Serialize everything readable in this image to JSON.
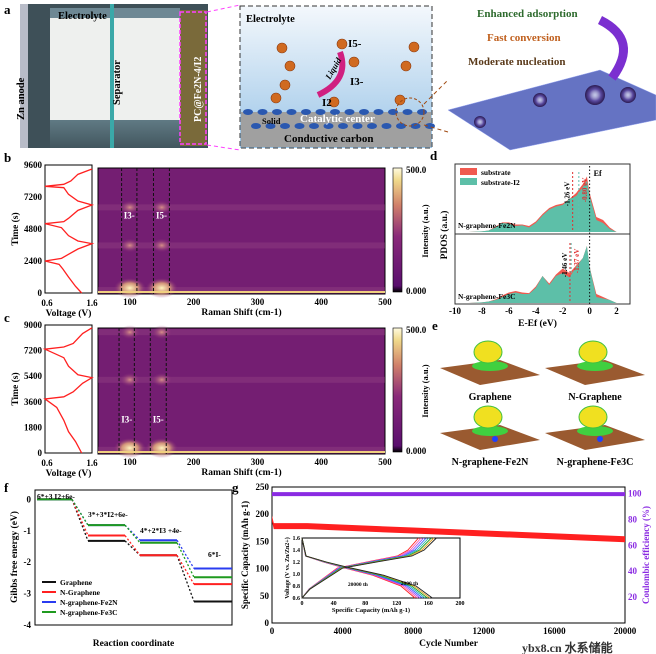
{
  "panels": {
    "a": "a",
    "b": "b",
    "c": "c",
    "d": "d",
    "e": "e",
    "f": "f",
    "g": "g"
  },
  "panel_a": {
    "cell": {
      "electrolyte": "Electrolyte",
      "anode": "Zn anode",
      "separator": "Separator",
      "cathode": "PC@Fe2N-4/I2"
    },
    "zoom": {
      "electrolyte": "Electrolyte",
      "i5": "I5-",
      "i3": "I3-",
      "i2": "I2",
      "liquid": "Liquid",
      "solid": "Solid",
      "catalytic": "Catalytic center",
      "carbon": "Conductive carbon"
    },
    "features": [
      "Enhanced adsorption",
      "Fast conversion",
      "Moderate nucleation"
    ],
    "feature_colors": [
      "#2e6b2e",
      "#c0601e",
      "#5a3a1a"
    ],
    "arrow_color": "#7b2fd0"
  },
  "chart_data": [
    {
      "id": "b-voltage",
      "type": "line",
      "xlabel": "Voltage (V)",
      "ylabel": "Time (s)",
      "xlim": [
        0.6,
        1.6
      ],
      "ylim": [
        0,
        9600
      ],
      "xticks": [
        "0.6",
        "1.6"
      ],
      "yticks": [
        "0",
        "2400",
        "4800",
        "7200",
        "9600"
      ],
      "color": "#ff2020",
      "points": [
        [
          1.38,
          0
        ],
        [
          1.25,
          500
        ],
        [
          1.1,
          1200
        ],
        [
          0.98,
          1800
        ],
        [
          0.9,
          2150
        ],
        [
          0.6,
          2400
        ],
        [
          0.95,
          2600
        ],
        [
          1.1,
          2900
        ],
        [
          1.3,
          3300
        ],
        [
          1.6,
          3700
        ],
        [
          1.3,
          3900
        ],
        [
          1.1,
          4300
        ],
        [
          0.95,
          4900
        ],
        [
          0.6,
          5200
        ],
        [
          1.0,
          5350
        ],
        [
          1.1,
          5600
        ],
        [
          1.3,
          6200
        ],
        [
          1.6,
          6600
        ],
        [
          1.3,
          6900
        ],
        [
          1.1,
          7400
        ],
        [
          1.0,
          7900
        ],
        [
          0.6,
          8000
        ],
        [
          1.0,
          8150
        ],
        [
          1.15,
          8400
        ],
        [
          1.3,
          8900
        ],
        [
          1.6,
          9300
        ]
      ]
    },
    {
      "id": "b-raman",
      "type": "heatmap",
      "xlabel": "Raman Shift (cm-1)",
      "xlim": [
        50,
        500
      ],
      "ylim": [
        0,
        9600
      ],
      "xticks": [
        "100",
        "200",
        "300",
        "400",
        "500"
      ],
      "colorbar": {
        "label": "Intensity (a.u.)",
        "max": "500.0",
        "min": "0.000"
      },
      "annotations": [
        "I3-",
        "I5-"
      ],
      "peaks_cm": [
        100,
        150
      ],
      "bands_cm": [
        [
          87,
          111
        ],
        [
          137,
          162
        ]
      ],
      "bright_times_s": [
        300,
        3700,
        6600
      ]
    },
    {
      "id": "c-voltage",
      "type": "line",
      "xlabel": "Voltage (V)",
      "ylabel": "Time (s)",
      "xlim": [
        0.6,
        1.6
      ],
      "ylim": [
        0,
        9000
      ],
      "xticks": [
        "0.6",
        "1.6"
      ],
      "yticks": [
        "0",
        "1800",
        "3600",
        "5400",
        "7200",
        "9000"
      ],
      "color": "#ff2020",
      "points": [
        [
          1.38,
          0
        ],
        [
          1.25,
          800
        ],
        [
          1.1,
          1500
        ],
        [
          1.0,
          2300
        ],
        [
          0.85,
          3200
        ],
        [
          0.6,
          3800
        ],
        [
          1.0,
          3950
        ],
        [
          1.2,
          4300
        ],
        [
          1.4,
          4900
        ],
        [
          1.6,
          5300
        ],
        [
          1.3,
          5500
        ],
        [
          1.1,
          6100
        ],
        [
          1.0,
          6700
        ],
        [
          0.6,
          7300
        ],
        [
          1.0,
          7450
        ],
        [
          1.2,
          7700
        ],
        [
          1.4,
          8400
        ],
        [
          1.6,
          8800
        ]
      ]
    },
    {
      "id": "c-raman",
      "type": "heatmap",
      "xlabel": "Raman Shift (cm-1)",
      "xlim": [
        50,
        500
      ],
      "ylim": [
        0,
        9000
      ],
      "xticks": [
        "100",
        "200",
        "300",
        "400",
        "500"
      ],
      "colorbar": {
        "label": "Intensity (a.u.)",
        "max": "500.0",
        "min": "0.000"
      },
      "annotations": [
        "I3-",
        "I5-"
      ],
      "peaks_cm": [
        100,
        150
      ],
      "bands_cm": [
        [
          83,
          107
        ],
        [
          132,
          157
        ]
      ],
      "bright_times_s": [
        300,
        5300,
        8700
      ]
    },
    {
      "id": "d-pdos",
      "type": "area",
      "xlabel": "E-Ef (eV)",
      "ylabel": "PDOS (a.u.)",
      "xlim": [
        -10,
        3
      ],
      "xticks": [
        "-10",
        "-8",
        "-6",
        "-4",
        "-2",
        "0",
        "2"
      ],
      "legend": [
        "substrate",
        "substrate-I2"
      ],
      "legend_colors": [
        "#f05a50",
        "#5dbfa8"
      ],
      "fermi": "Ef",
      "x": [
        -10,
        -9,
        -8,
        -7.5,
        -7,
        -6.5,
        -6,
        -5.5,
        -5,
        -4.5,
        -4,
        -3.5,
        -3,
        -2.5,
        -2,
        -1.5,
        -1,
        -0.5,
        -0.2,
        0,
        0.5,
        1,
        1.5,
        2,
        3
      ],
      "subplots": [
        {
          "name": "N-graphene-Fe2N",
          "centers": [
            "-1.26 eV",
            "-0.80 eV"
          ],
          "center_values": [
            -1.26,
            -0.8
          ],
          "substrate": [
            0,
            0,
            0.02,
            0.05,
            0.18,
            0.32,
            0.32,
            0.25,
            0.25,
            0.2,
            0.35,
            0.6,
            0.8,
            0.9,
            0.95,
            1.1,
            1.3,
            1.6,
            1.85,
            1.3,
            0.5,
            0.4,
            0.15,
            0,
            0
          ],
          "substrate_I2": [
            0,
            0,
            0.02,
            0.05,
            0.15,
            0.3,
            0.28,
            0.2,
            0.22,
            0.15,
            0.3,
            0.55,
            0.75,
            0.85,
            0.9,
            1.1,
            1.2,
            1.5,
            1.7,
            1.2,
            0.4,
            0.3,
            0.1,
            0,
            0
          ]
        },
        {
          "name": "N-graphene-Fe3C",
          "centers": [
            "-1.46 eV",
            "-1.37 eV"
          ],
          "center_values": [
            -1.46,
            -1.37
          ],
          "substrate": [
            0,
            0,
            0.02,
            0.05,
            0.12,
            0.25,
            0.35,
            0.4,
            0.35,
            0.33,
            0.55,
            0.9,
            0.65,
            0.95,
            1.15,
            1.0,
            1.25,
            1.5,
            1.9,
            1.2,
            0.3,
            0.2,
            0.1,
            0,
            0
          ],
          "substrate_I2": [
            0,
            0,
            0.02,
            0.05,
            0.1,
            0.2,
            0.3,
            0.35,
            0.3,
            0.3,
            0.5,
            0.9,
            0.6,
            0.9,
            1.0,
            0.85,
            1.2,
            1.5,
            1.9,
            1.2,
            0.2,
            0.15,
            0.1,
            0,
            0
          ]
        }
      ]
    },
    {
      "id": "e-models",
      "type": "table",
      "labels": [
        "Graphene",
        "N-Graphene",
        "N-graphene-Fe2N",
        "N-graphene-Fe3C"
      ]
    },
    {
      "id": "f-energy",
      "type": "line",
      "xlabel": "Reaction coordinate",
      "ylabel": "Gibbs free energy (eV)",
      "ylim": [
        -4,
        0.3
      ],
      "yticks": [
        "0",
        "-1",
        "-2",
        "-3",
        "-4"
      ],
      "steps": [
        "6*+3 I2+6e-",
        "3*+3*I2+6e-",
        "4*+2*I3 +4e-",
        "6*I-"
      ],
      "series": [
        {
          "name": "Graphene",
          "color": "#111111",
          "values": [
            0,
            -1.32,
            -1.78,
            -3.25
          ]
        },
        {
          "name": "N-Graphene",
          "color": "#ff2020",
          "values": [
            0,
            -1.15,
            -1.78,
            -2.7
          ]
        },
        {
          "name": "N-graphene-Fe2N",
          "color": "#2a3cf0",
          "values": [
            0,
            -0.82,
            -1.3,
            -2.2
          ]
        },
        {
          "name": "N-graphene-Fe3C",
          "color": "#1f9a1f",
          "values": [
            0,
            -0.82,
            -1.38,
            -2.48
          ]
        }
      ]
    },
    {
      "id": "g-cycling",
      "type": "scatter",
      "xlabel": "Cycle Number",
      "ylabel": "Specific Capacity (mAh g-1)",
      "y2label": "Coulombic efficiency (%)",
      "xlim": [
        0,
        20000
      ],
      "ylim": [
        0,
        250
      ],
      "y2lim": [
        0,
        105
      ],
      "xticks": [
        "0",
        "4000",
        "8000",
        "12000",
        "16000",
        "20000"
      ],
      "yticks": [
        "0",
        "50",
        "100",
        "150",
        "200",
        "250"
      ],
      "y2ticks": [
        "20",
        "40",
        "60",
        "80",
        "100"
      ],
      "capacity": {
        "x": [
          0,
          100,
          2000,
          8000,
          14000,
          20000
        ],
        "y": [
          192,
          178,
          178,
          170,
          162,
          154
        ],
        "color": "#ff2020"
      },
      "efficiency": {
        "x": [
          0,
          20000
        ],
        "y": [
          99.5,
          99.5
        ],
        "color": "#8a2be2"
      },
      "inset": {
        "xlabel": "Specific Capacity (mAh g-1)",
        "ylabel": "Voltage (V vs. Zn/Zn2+)",
        "xlim": [
          0,
          200
        ],
        "ylim": [
          0.6,
          1.6
        ],
        "xticks": [
          "0",
          "40",
          "80",
          "120",
          "160",
          "200"
        ],
        "yticks": [
          "0.6",
          "0.8",
          "1.0",
          "1.2",
          "1.4",
          "1.6"
        ],
        "annotations": [
          "20000 th",
          "2000 th"
        ],
        "end_capacities": [
          143,
          165
        ],
        "colors": [
          "#ff2020",
          "#ff55aa",
          "#9a4cff",
          "#3060ff",
          "#20b0b0",
          "#20a020",
          "#e0a020",
          "#222222"
        ]
      }
    }
  ],
  "watermark": "ybx8.cn  水系储能"
}
